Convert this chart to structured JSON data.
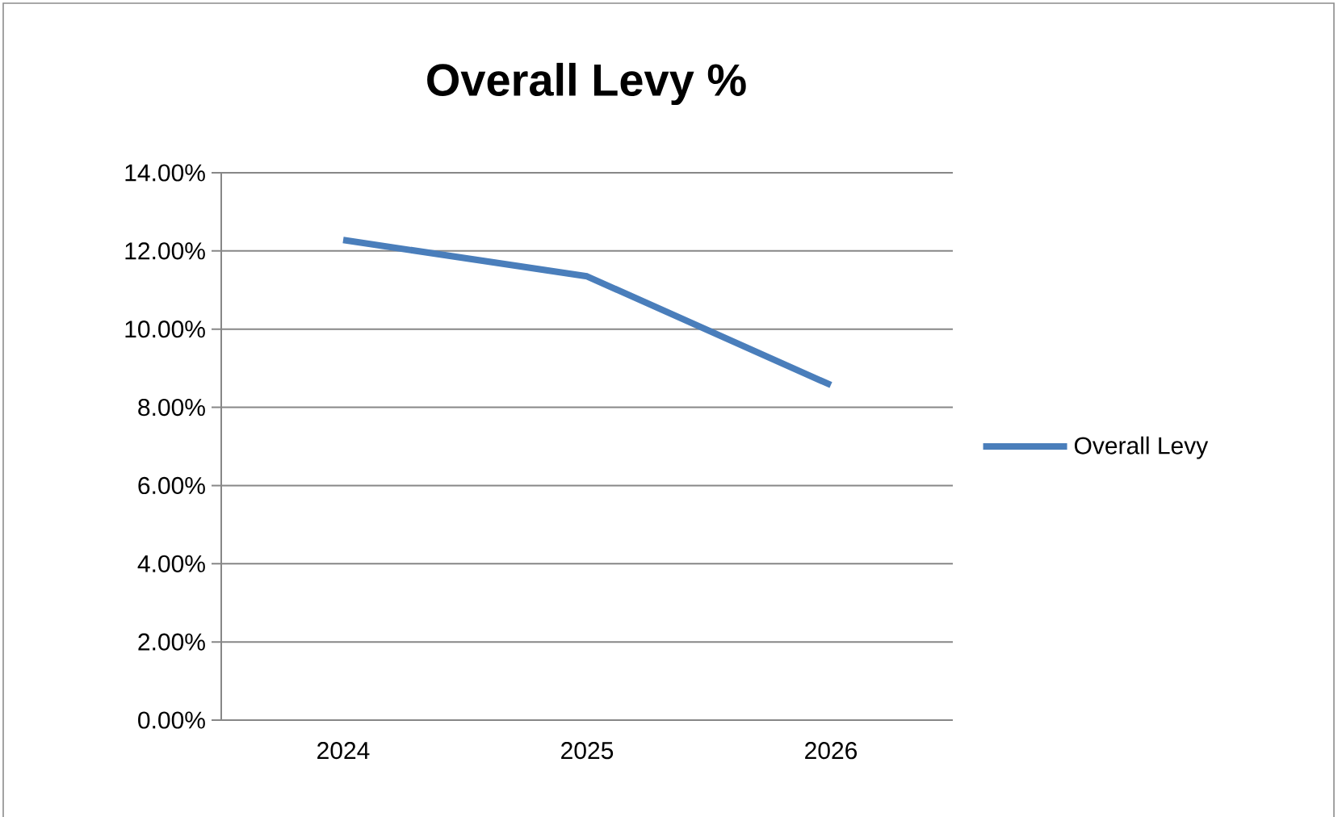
{
  "chart_data": {
    "type": "line",
    "title": "Overall Levy %",
    "categories": [
      "2024",
      "2025",
      "2026"
    ],
    "series": [
      {
        "name": "Overall Levy",
        "color": "#4a7ebb",
        "values": [
          12.28,
          11.35,
          8.57
        ]
      }
    ],
    "ylim": [
      0,
      14
    ],
    "yticks": [
      {
        "value": 0,
        "label": "0.00%"
      },
      {
        "value": 2,
        "label": "2.00%"
      },
      {
        "value": 4,
        "label": "4.00%"
      },
      {
        "value": 6,
        "label": "6.00%"
      },
      {
        "value": 8,
        "label": "8.00%"
      },
      {
        "value": 10,
        "label": "10.00%"
      },
      {
        "value": 12,
        "label": "12.00%"
      },
      {
        "value": 14,
        "label": "14.00%"
      }
    ],
    "grid": "y",
    "legend": "right"
  }
}
